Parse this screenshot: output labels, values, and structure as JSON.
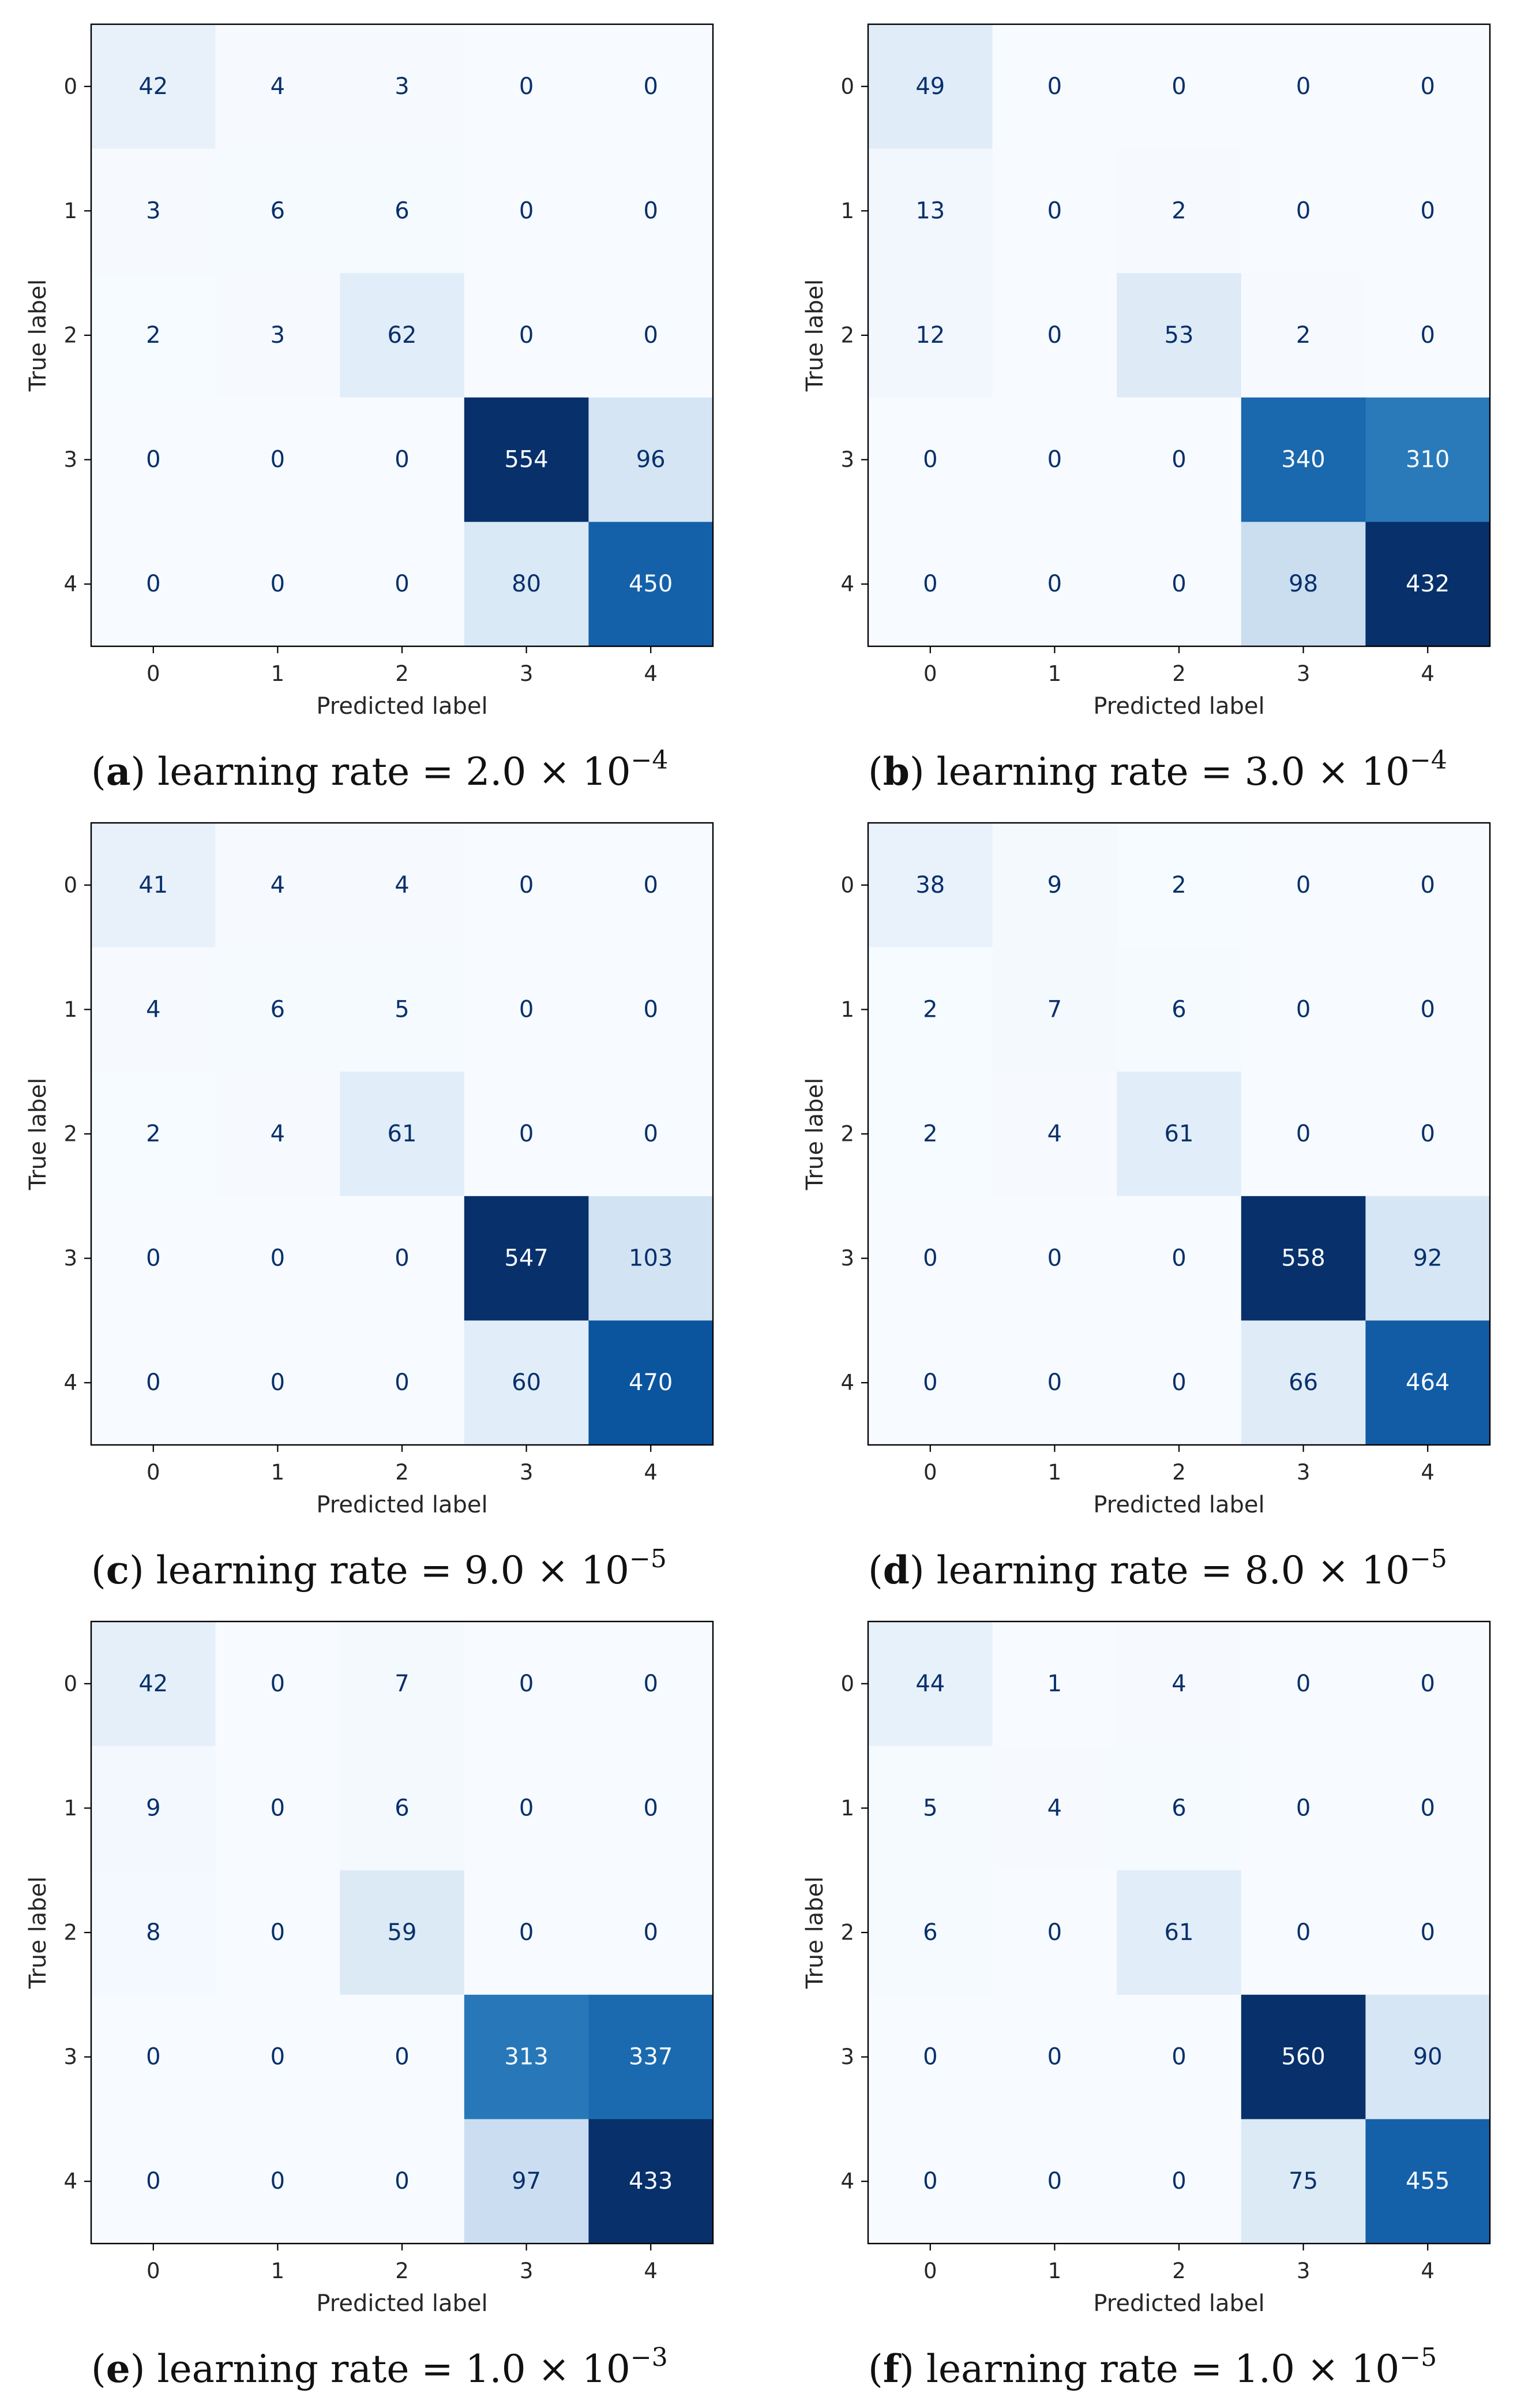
{
  "chart_data": [
    {
      "type": "heatmap",
      "subtitle": "(a)",
      "caption": {
        "label": "a",
        "prefix": "learning rate = 2.0 × 10",
        "exponent": "−4"
      },
      "xlabel": "Predicted label",
      "ylabel": "True label",
      "x_categories": [
        "0",
        "1",
        "2",
        "3",
        "4"
      ],
      "y_categories": [
        "0",
        "1",
        "2",
        "3",
        "4"
      ],
      "colormap": "Blues",
      "matrix": [
        [
          42,
          4,
          3,
          0,
          0
        ],
        [
          3,
          6,
          6,
          0,
          0
        ],
        [
          2,
          3,
          62,
          0,
          0
        ],
        [
          0,
          0,
          0,
          554,
          96
        ],
        [
          0,
          0,
          0,
          80,
          450
        ]
      ]
    },
    {
      "type": "heatmap",
      "subtitle": "(b)",
      "caption": {
        "label": "b",
        "prefix": "learning rate = 3.0 × 10",
        "exponent": "−4"
      },
      "xlabel": "Predicted label",
      "ylabel": "True label",
      "x_categories": [
        "0",
        "1",
        "2",
        "3",
        "4"
      ],
      "y_categories": [
        "0",
        "1",
        "2",
        "3",
        "4"
      ],
      "colormap": "Blues",
      "matrix": [
        [
          49,
          0,
          0,
          0,
          0
        ],
        [
          13,
          0,
          2,
          0,
          0
        ],
        [
          12,
          0,
          53,
          2,
          0
        ],
        [
          0,
          0,
          0,
          340,
          310
        ],
        [
          0,
          0,
          0,
          98,
          432
        ]
      ]
    },
    {
      "type": "heatmap",
      "subtitle": "(c)",
      "caption": {
        "label": "c",
        "prefix": "learning rate = 9.0 × 10",
        "exponent": "−5"
      },
      "xlabel": "Predicted label",
      "ylabel": "True label",
      "x_categories": [
        "0",
        "1",
        "2",
        "3",
        "4"
      ],
      "y_categories": [
        "0",
        "1",
        "2",
        "3",
        "4"
      ],
      "colormap": "Blues",
      "matrix": [
        [
          41,
          4,
          4,
          0,
          0
        ],
        [
          4,
          6,
          5,
          0,
          0
        ],
        [
          2,
          4,
          61,
          0,
          0
        ],
        [
          0,
          0,
          0,
          547,
          103
        ],
        [
          0,
          0,
          0,
          60,
          470
        ]
      ]
    },
    {
      "type": "heatmap",
      "subtitle": "(d)",
      "caption": {
        "label": "d",
        "prefix": "learning rate = 8.0 × 10",
        "exponent": "−5"
      },
      "xlabel": "Predicted label",
      "ylabel": "True label",
      "x_categories": [
        "0",
        "1",
        "2",
        "3",
        "4"
      ],
      "y_categories": [
        "0",
        "1",
        "2",
        "3",
        "4"
      ],
      "colormap": "Blues",
      "matrix": [
        [
          38,
          9,
          2,
          0,
          0
        ],
        [
          2,
          7,
          6,
          0,
          0
        ],
        [
          2,
          4,
          61,
          0,
          0
        ],
        [
          0,
          0,
          0,
          558,
          92
        ],
        [
          0,
          0,
          0,
          66,
          464
        ]
      ]
    },
    {
      "type": "heatmap",
      "subtitle": "(e)",
      "caption": {
        "label": "e",
        "prefix": "learning rate = 1.0 × 10",
        "exponent": "−3"
      },
      "xlabel": "Predicted label",
      "ylabel": "True label",
      "x_categories": [
        "0",
        "1",
        "2",
        "3",
        "4"
      ],
      "y_categories": [
        "0",
        "1",
        "2",
        "3",
        "4"
      ],
      "colormap": "Blues",
      "matrix": [
        [
          42,
          0,
          7,
          0,
          0
        ],
        [
          9,
          0,
          6,
          0,
          0
        ],
        [
          8,
          0,
          59,
          0,
          0
        ],
        [
          0,
          0,
          0,
          313,
          337
        ],
        [
          0,
          0,
          0,
          97,
          433
        ]
      ]
    },
    {
      "type": "heatmap",
      "subtitle": "(f)",
      "caption": {
        "label": "f",
        "prefix": "learning rate = 1.0 × 10",
        "exponent": "−5"
      },
      "xlabel": "Predicted label",
      "ylabel": "True label",
      "x_categories": [
        "0",
        "1",
        "2",
        "3",
        "4"
      ],
      "y_categories": [
        "0",
        "1",
        "2",
        "3",
        "4"
      ],
      "colormap": "Blues",
      "matrix": [
        [
          44,
          1,
          4,
          0,
          0
        ],
        [
          5,
          4,
          6,
          0,
          0
        ],
        [
          6,
          0,
          61,
          0,
          0
        ],
        [
          0,
          0,
          0,
          560,
          90
        ],
        [
          0,
          0,
          0,
          75,
          455
        ]
      ]
    }
  ]
}
